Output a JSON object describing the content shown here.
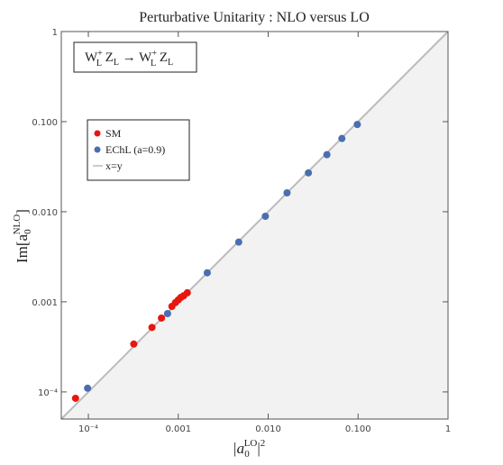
{
  "chart_data": {
    "type": "scatter",
    "title": "Perturbative Unitarity : NLO versus LO",
    "xlabel_parts": [
      "|a",
      "0",
      "LO",
      "|",
      "2"
    ],
    "ylabel_parts": [
      "Im[a",
      "0",
      "NLO",
      "]"
    ],
    "annotation_parts": [
      "W",
      "+",
      "L",
      " Z",
      "L",
      " → W",
      "+",
      "L",
      " Z",
      "L"
    ],
    "xscale": "log",
    "yscale": "log",
    "xlim": [
      5e-05,
      1
    ],
    "ylim": [
      5e-05,
      1
    ],
    "xticks": [
      {
        "value": 0.0001,
        "label": "10⁻⁴"
      },
      0.001,
      {
        "value": 0.01,
        "label": "0.010"
      },
      {
        "value": 0.1,
        "label": "0.100"
      },
      1
    ],
    "yticks": [
      {
        "value": 0.0001,
        "label": "10⁻⁴"
      },
      0.001,
      {
        "value": 0.01,
        "label": "0.010"
      },
      {
        "value": 0.1,
        "label": "0.100"
      },
      1
    ],
    "legend": "upper left",
    "reference_line": {
      "name": "x=y",
      "color": "#bbbbbb"
    },
    "series": [
      {
        "name": "SM",
        "color": "#e8160c",
        "x": [
          7.2e-05,
          0.00032,
          0.00051,
          0.00065,
          0.00085,
          0.00093,
          0.001,
          0.00107,
          0.00115,
          0.00126
        ],
        "values": [
          8.5e-05,
          0.00034,
          0.00052,
          0.00066,
          0.00089,
          0.00098,
          0.00105,
          0.00112,
          0.00117,
          0.00126
        ]
      },
      {
        "name": "EChL (a=0.9)",
        "color": "#4a6eb0",
        "x": [
          9.8e-05,
          0.00076,
          0.0021,
          0.0047,
          0.0093,
          0.0162,
          0.028,
          0.045,
          0.066,
          0.098
        ],
        "values": [
          0.00011,
          0.00074,
          0.0021,
          0.0046,
          0.0089,
          0.0162,
          0.027,
          0.043,
          0.065,
          0.093
        ]
      }
    ]
  }
}
